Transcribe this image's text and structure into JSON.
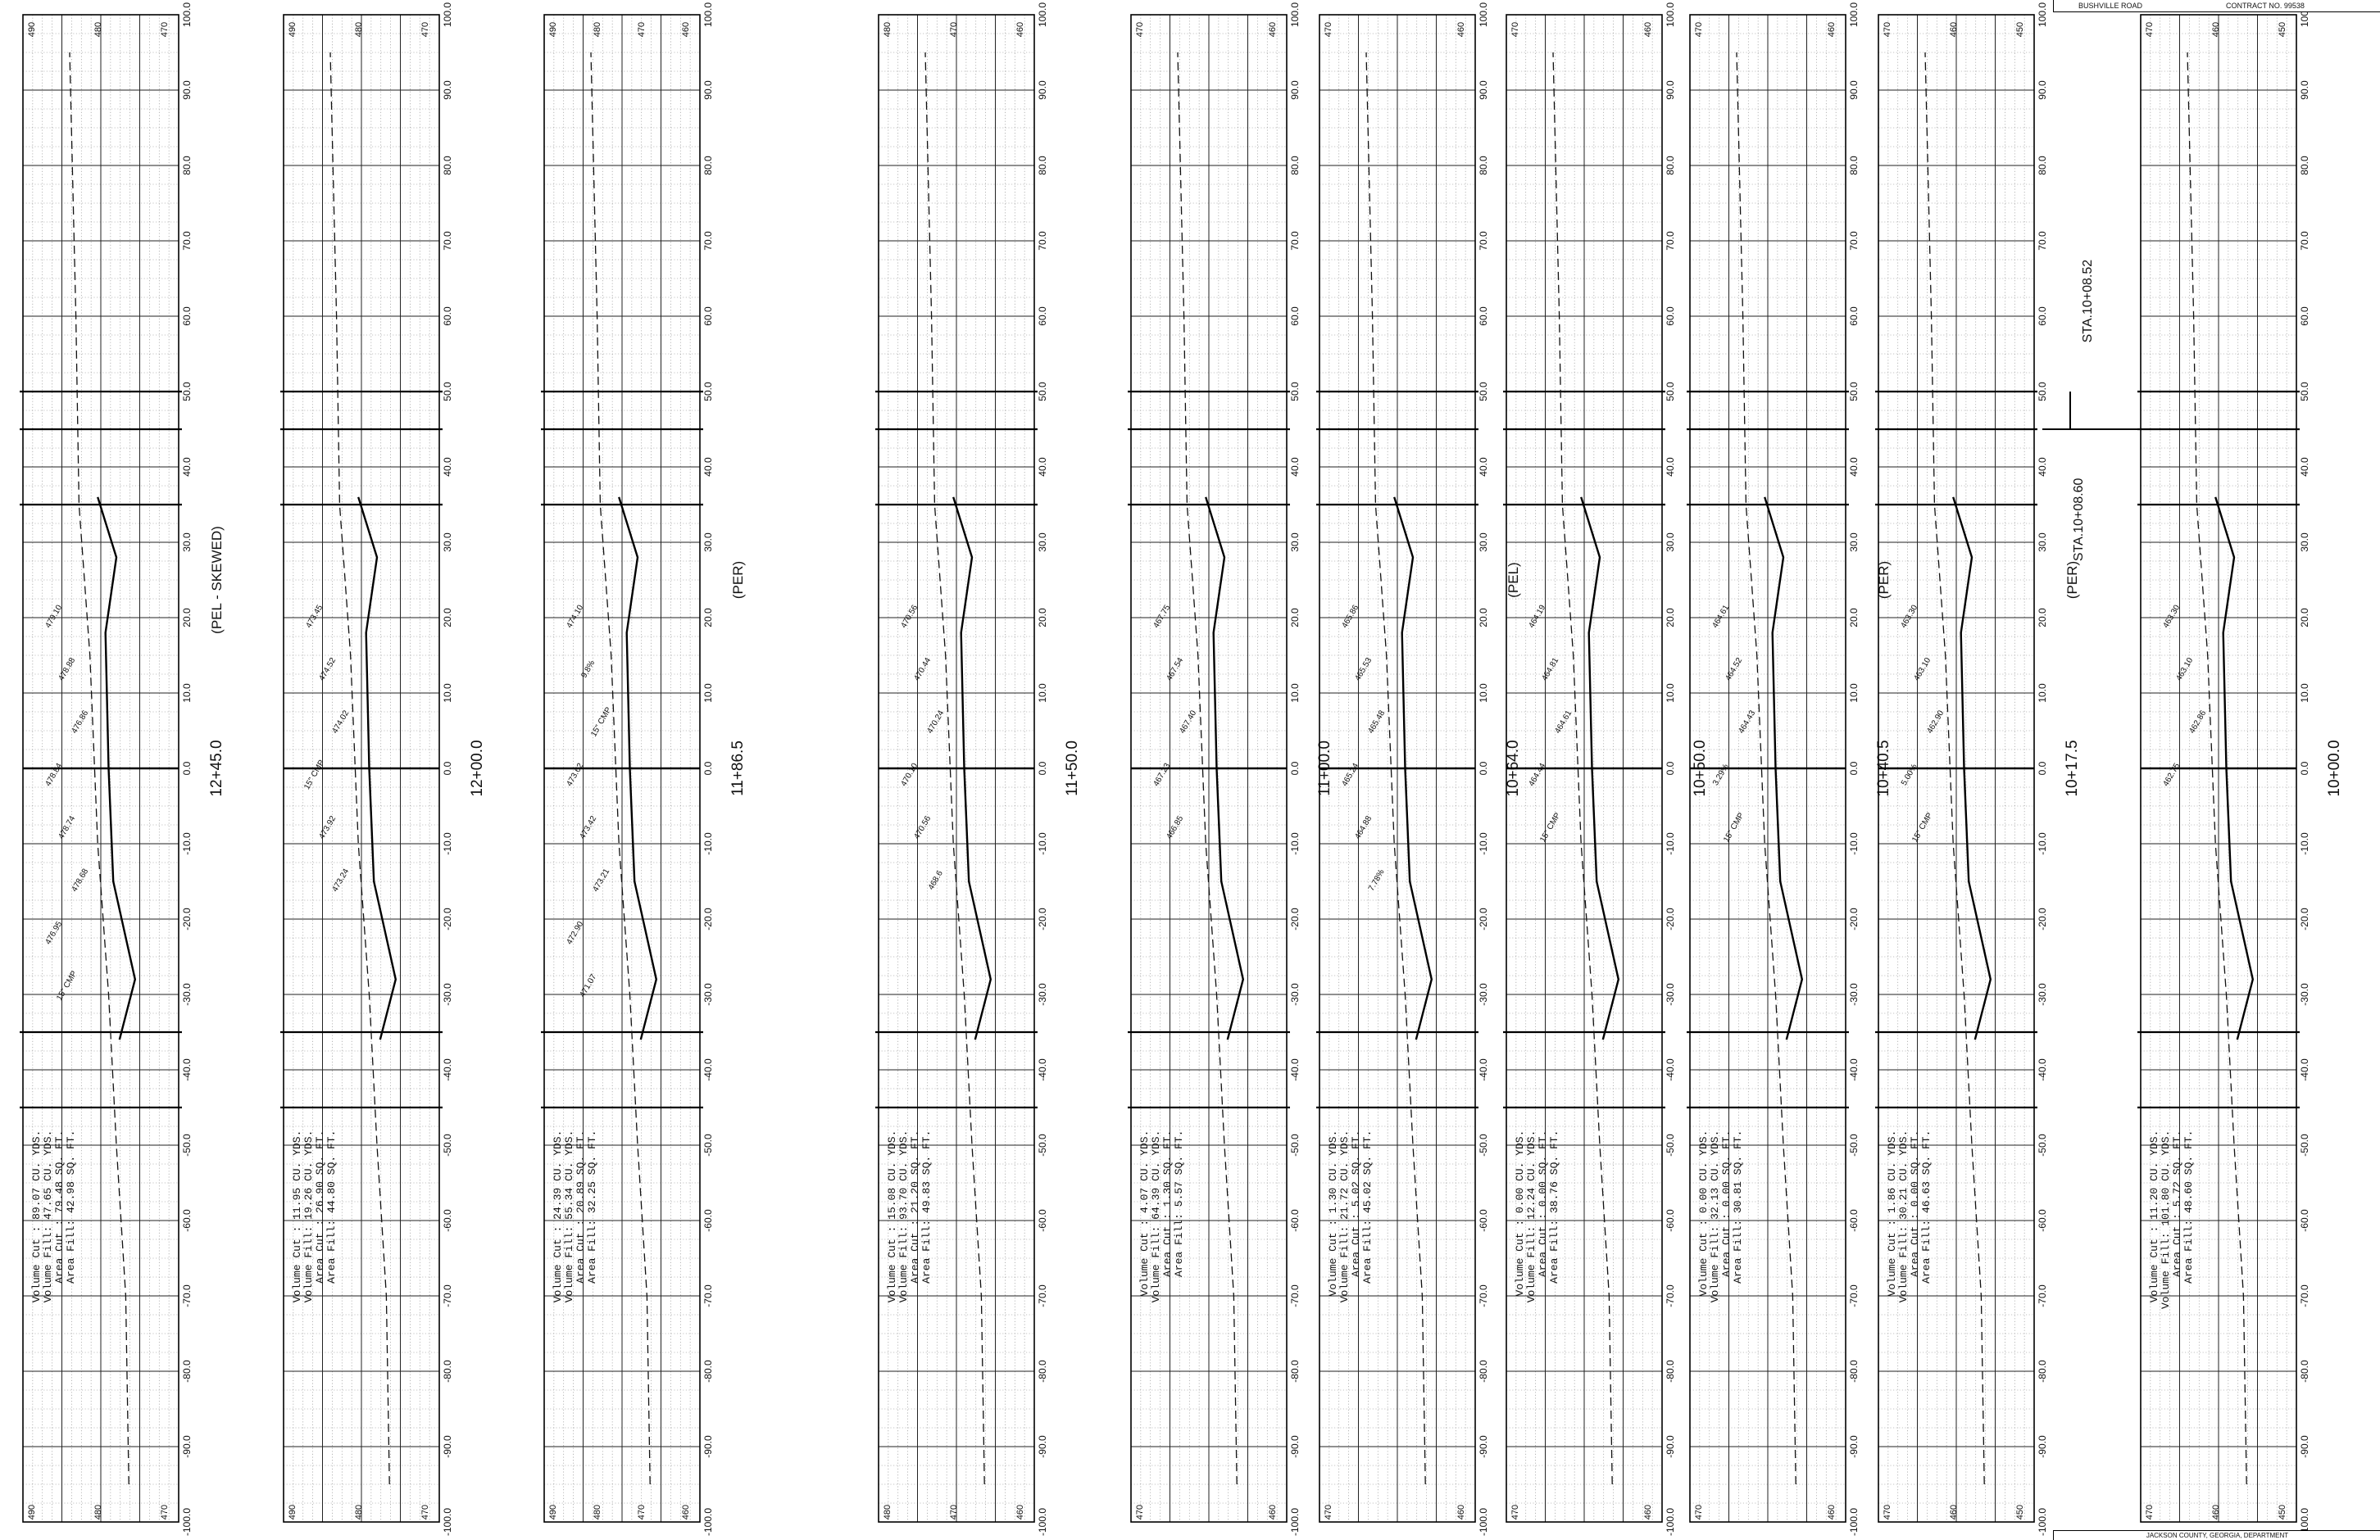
{
  "sheet": {
    "title_block": {
      "road_name": "BUSHVILLE ROAD",
      "contract_no": "CONTRACT NO. 99538"
    },
    "footer_text": "JACKSON COUNTY, GEORGIA, DEPARTMENT",
    "scale_labels": [
      "100.0",
      "90.0",
      "80.0",
      "70.0",
      "60.0",
      "50.0",
      "40.0",
      "30.0",
      "20.0",
      "10.0",
      "0.0",
      "-10.0",
      "-20.0",
      "-30.0",
      "-40.0",
      "-50.0",
      "-60.0",
      "-70.0",
      "-80.0",
      "-90.0",
      "-100.0"
    ],
    "station_marker": {
      "upper": "STA.10+08.52",
      "lower": "STA.10+08.60"
    }
  },
  "sections": [
    {
      "station": "12+45.0",
      "note": "(PEL - SKEWED)",
      "elev_top": [
        "490",
        "480",
        "470"
      ],
      "elev_bottom": [
        "490",
        "480",
        "470"
      ],
      "volume_cut": "89.07 CU. YDS.",
      "volume_fill": "47.65 CU. YDS.",
      "area_cut": "79.48 SQ. FT.",
      "area_fill": "42.98 SQ. FT.",
      "labels": [
        "479.10",
        "478.88",
        "476.86",
        "478.84",
        "478.74",
        "478.68",
        "476.95",
        "15\" CMP"
      ]
    },
    {
      "station": "12+00.0",
      "note": "",
      "elev_top": [
        "490",
        "480",
        "470"
      ],
      "elev_bottom": [
        "490",
        "480",
        "470"
      ],
      "volume_cut": "11.95 CU. YDS.",
      "volume_fill": "19.26 CU. YDS.",
      "area_cut": "26.90 SQ. FT.",
      "area_fill": "44.80 SQ. FT.",
      "labels": [
        "473.45",
        "474.52",
        "474.02",
        "15\" CMP",
        "473.92",
        "473.24"
      ]
    },
    {
      "station": "11+86.5",
      "note": "(PER)",
      "elev_top": [
        "490",
        "480",
        "470",
        "460"
      ],
      "elev_bottom": [
        "490",
        "480",
        "470",
        "460"
      ],
      "volume_cut": "24.39 CU. YDS.",
      "volume_fill": "55.34 CU. YDS.",
      "area_cut": "20.89 SQ. FT.",
      "area_fill": "32.25 SQ. FT.",
      "labels": [
        "474.10",
        "9.8%",
        "15\" CMP",
        "473.62",
        "473.42",
        "473.21",
        "472.90",
        "471.07"
      ]
    },
    {
      "station": "11+50.0",
      "note": "",
      "elev_top": [
        "480",
        "470",
        "460"
      ],
      "elev_bottom": [
        "480",
        "470",
        "460"
      ],
      "volume_cut": "15.08 CU. YDS.",
      "volume_fill": "93.70 CU. YDS.",
      "area_cut": "21.20 SQ. FT.",
      "area_fill": "49.83 SQ. FT.",
      "labels": [
        "470.56",
        "470.44",
        "470.24",
        "470.10",
        "470.56",
        "468.6"
      ]
    },
    {
      "station": "11+00.0",
      "note": "",
      "elev_top": [
        "470",
        "460"
      ],
      "elev_bottom": [
        "470",
        "460"
      ],
      "volume_cut": "4.07 CU. YDS.",
      "volume_fill": "64.39 CU. YDS.",
      "area_cut": "1.30 SQ. FT.",
      "area_fill": "5.57 SQ. FT.",
      "labels": [
        "467.75",
        "467.54",
        "467.40",
        "467.23",
        "466.85"
      ]
    },
    {
      "station": "10+64.0",
      "note": "(PEL)",
      "elev_top": [
        "470",
        "460"
      ],
      "elev_bottom": [
        "470",
        "460"
      ],
      "volume_cut": "1.30 CU. YDS.",
      "volume_fill": "21.72 CU. YDS.",
      "area_cut": "5.02 SQ. FT.",
      "area_fill": "45.02 SQ. FT.",
      "labels": [
        "465.86",
        "465.53",
        "465.48",
        "465.24",
        "464.88",
        "7.78%"
      ]
    },
    {
      "station": "10+50.0",
      "note": "",
      "elev_top": [
        "470",
        "460"
      ],
      "elev_bottom": [
        "470",
        "460"
      ],
      "volume_cut": "0.00 CU. YDS.",
      "volume_fill": "12.24 CU. YDS.",
      "area_cut": "0.00 SQ. FT.",
      "area_fill": "38.76 SQ. FT.",
      "labels": [
        "464.19",
        "464.81",
        "464.61",
        "464.44",
        "15\" CMP"
      ]
    },
    {
      "station": "10+40.5",
      "note": "(PER)",
      "elev_top": [
        "470",
        "460"
      ],
      "elev_bottom": [
        "470",
        "460"
      ],
      "volume_cut": "0.00 CU. YDS.",
      "volume_fill": "32.13 CU. YDS.",
      "area_cut": "0.00 SQ. FT.",
      "area_fill": "30.81 SQ. FT.",
      "labels": [
        "464.61",
        "464.52",
        "464.43",
        "3.29%",
        "15\" CMP"
      ]
    },
    {
      "station": "10+17.5",
      "note": "(PER)",
      "elev_top": [
        "470",
        "460",
        "450"
      ],
      "elev_bottom": [
        "470",
        "460",
        "450"
      ],
      "volume_cut": "1.86 CU. YDS.",
      "volume_fill": "30.21 CU. YDS.",
      "area_cut": "0.00 SQ. FT.",
      "area_fill": "46.63 SQ. FT.",
      "labels": [
        "463.30",
        "463.10",
        "462.90",
        "5.00%",
        "15\" CMP"
      ]
    },
    {
      "station": "10+00.0",
      "note": "",
      "elev_top": [
        "470",
        "460",
        "450"
      ],
      "elev_bottom": [
        "470",
        "460",
        "450"
      ],
      "volume_cut": "11.20 CU. YDS.",
      "volume_fill": "101.80 CU. YDS.",
      "area_cut": "5.72 SQ. FT.",
      "area_fill": "48.60 SQ. FT.",
      "labels": [
        "463.30",
        "463.10",
        "462.86",
        "462.75"
      ]
    }
  ]
}
